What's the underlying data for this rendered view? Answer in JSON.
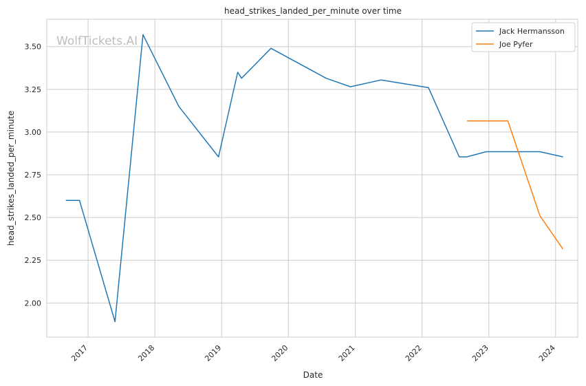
{
  "chart_data": {
    "type": "line",
    "title": "head_strikes_landed_per_minute over time",
    "xlabel": "Date",
    "ylabel": "head_strikes_landed_per_minute",
    "watermark": "WolfTickets.AI",
    "xlim": [
      "2016-05-20",
      "2024-05-01"
    ],
    "ylim": [
      1.8,
      3.66
    ],
    "x_ticks": [
      "2017",
      "2018",
      "2019",
      "2020",
      "2021",
      "2022",
      "2023",
      "2024"
    ],
    "y_ticks": [
      "2.00",
      "2.25",
      "2.50",
      "2.75",
      "3.00",
      "3.25",
      "3.50"
    ],
    "grid": true,
    "legend_position": "top-right",
    "series": [
      {
        "name": "Jack Hermansson",
        "color": "#1f77b4",
        "points": [
          {
            "x": "2016-09-01",
            "y": 2.6
          },
          {
            "x": "2016-11-15",
            "y": 2.6
          },
          {
            "x": "2017-05-28",
            "y": 1.89
          },
          {
            "x": "2017-10-28",
            "y": 3.57
          },
          {
            "x": "2018-05-12",
            "y": 3.15
          },
          {
            "x": "2018-12-15",
            "y": 2.855
          },
          {
            "x": "2019-03-30",
            "y": 3.35
          },
          {
            "x": "2019-04-20",
            "y": 3.315
          },
          {
            "x": "2019-09-28",
            "y": 3.49
          },
          {
            "x": "2020-07-25",
            "y": 3.315
          },
          {
            "x": "2020-12-05",
            "y": 3.265
          },
          {
            "x": "2021-05-22",
            "y": 3.305
          },
          {
            "x": "2022-02-05",
            "y": 3.26
          },
          {
            "x": "2022-07-23",
            "y": 2.855
          },
          {
            "x": "2022-09-03",
            "y": 2.855
          },
          {
            "x": "2022-12-17",
            "y": 2.885
          },
          {
            "x": "2023-10-07",
            "y": 2.885
          },
          {
            "x": "2024-02-10",
            "y": 2.855
          }
        ]
      },
      {
        "name": "Joe Pyfer",
        "color": "#ff7f0e",
        "points": [
          {
            "x": "2022-09-03",
            "y": 3.065
          },
          {
            "x": "2023-04-15",
            "y": 3.065
          },
          {
            "x": "2023-10-07",
            "y": 2.51
          },
          {
            "x": "2024-02-10",
            "y": 2.315
          }
        ]
      }
    ]
  }
}
